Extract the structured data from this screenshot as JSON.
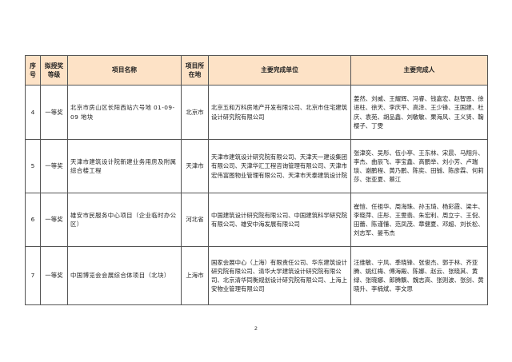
{
  "table": {
    "headers": {
      "no": "序号",
      "level": "拟授奖等级",
      "name": "项目名称",
      "region": "项目所在地",
      "units": "主要完成单位",
      "people": "主要完成人"
    },
    "rows": [
      {
        "no": "4",
        "level": "一等奖",
        "name": "北京市房山区长阳西站六号地 01-09-09 地块",
        "region": "北京市",
        "units": "北京五和万科房地产开发有限公司、北京市住宅建筑设计研究院有限公司",
        "people": "姜然、刘威、王耀辉、冯睿、钱嘉宏、赵智恩、徐进柱、徐天、李庆平、高泽、王少锋、王国建、杜庆、袁苑、胡品鑫、刘敏敏、栗海风、王义贤、鞠樱子、丁雯"
      },
      {
        "no": "5",
        "level": "一等奖",
        "name": "天津市建筑设计院新建业务用房及附属综合楼工程",
        "region": "天津市",
        "units": "天津市建筑设计研究院有限公司、天津天一建设集团有限公司、天津华汇工程咨询管理有限公司、天津市宏伟富图物业管理有限公司、天津市天泰建筑设计院",
        "people": "张津奕、吴彤、伍小亭、王东林、宋晨、马翔升、李杰、曲辰飞、李宝鑫、高鹏举、刘小芳、卢瑞琰、谢鹏程、黄乃鹏、陈奕、田铖、陈彦霖、何莉莎、张亚夏、蔡江"
      },
      {
        "no": "6",
        "level": "一等奖",
        "name": "雄安市民服务中心项目（企业临时办公区）",
        "region": "河北省",
        "units": "中国建筑设计研究院有限公司、中国建筑科学研究院有限公司、雄安中海发展有限公司",
        "people": "崔愷、任祖华、周海珠、孙玉琦、杨彩霞、梁丰、李晓萍、庄彤、王雯翡、朱宏利、周立宁、王倪、田蕾、陈谨懂、范凤茂、章健夏、邓超、刘长松、刘志军、晏韦杰"
      },
      {
        "no": "7",
        "level": "一等奖",
        "name": "中国博览会会展综合体项目（北块）",
        "region": "上海市",
        "units": "国家会展中心（上海）有限责任公司、华东建筑设计研究院有限公司、清华大学建筑设计研究院有限公司、北京清华同衡规划设计研究院有限公司、上海上安物业管理有限公司",
        "people": "汪维敏、宁风、季晓锋、张俊杰、郭于林、齐亚腾、姚红梅、傅海殿、陈娜、赵云、张晓其、黄绿、张晓娜、郎腾飘、魏志高、张则波、张剑、黄晓升、李楠斌、李文思"
      }
    ]
  },
  "footer": {
    "page_number": "2"
  }
}
